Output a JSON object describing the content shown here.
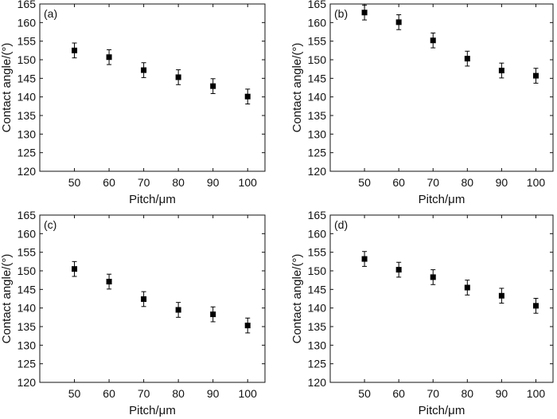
{
  "chart_data": [
    {
      "type": "scatter",
      "panel_label": "(a)",
      "xlabel": "Pitch/μm",
      "ylabel": "Contact angle/(°)",
      "x": [
        50,
        60,
        70,
        80,
        90,
        100
      ],
      "y": [
        152.5,
        150.7,
        147.2,
        145.3,
        142.9,
        140.1
      ],
      "yerr": [
        2.0,
        2.0,
        2.0,
        2.0,
        2.0,
        2.0
      ],
      "xlim": [
        40,
        105
      ],
      "ylim": [
        120,
        165
      ],
      "xticks": [
        50,
        60,
        70,
        80,
        90,
        100
      ],
      "yticks": [
        120,
        125,
        130,
        135,
        140,
        145,
        150,
        155,
        160,
        165
      ],
      "grid": false
    },
    {
      "type": "scatter",
      "panel_label": "(b)",
      "xlabel": "Pitch/μm",
      "ylabel": "Contact angle/(°)",
      "x": [
        50,
        60,
        70,
        80,
        90,
        100
      ],
      "y": [
        162.7,
        160.1,
        155.2,
        150.3,
        147.1,
        145.7
      ],
      "yerr": [
        2.0,
        2.0,
        2.0,
        2.0,
        2.0,
        2.0
      ],
      "xlim": [
        40,
        105
      ],
      "ylim": [
        120,
        165
      ],
      "xticks": [
        50,
        60,
        70,
        80,
        90,
        100
      ],
      "yticks": [
        120,
        125,
        130,
        135,
        140,
        145,
        150,
        155,
        160,
        165
      ],
      "grid": false
    },
    {
      "type": "scatter",
      "panel_label": "(c)",
      "xlabel": "Pitch/μm",
      "ylabel": "Contact angle/(°)",
      "x": [
        50,
        60,
        70,
        80,
        90,
        100
      ],
      "y": [
        150.5,
        147.1,
        142.4,
        139.5,
        138.3,
        135.3
      ],
      "yerr": [
        2.0,
        2.0,
        2.0,
        2.0,
        2.0,
        2.0
      ],
      "xlim": [
        40,
        105
      ],
      "ylim": [
        120,
        165
      ],
      "xticks": [
        50,
        60,
        70,
        80,
        90,
        100
      ],
      "yticks": [
        120,
        125,
        130,
        135,
        140,
        145,
        150,
        155,
        160,
        165
      ],
      "grid": false
    },
    {
      "type": "scatter",
      "panel_label": "(d)",
      "xlabel": "Pitch/μm",
      "ylabel": "Contact angle/(°)",
      "x": [
        50,
        60,
        70,
        80,
        90,
        100
      ],
      "y": [
        153.2,
        150.3,
        148.3,
        145.5,
        143.3,
        140.6
      ],
      "yerr": [
        2.0,
        2.0,
        2.0,
        2.0,
        2.0,
        2.0
      ],
      "xlim": [
        40,
        105
      ],
      "ylim": [
        120,
        165
      ],
      "xticks": [
        50,
        60,
        70,
        80,
        90,
        100
      ],
      "yticks": [
        120,
        125,
        130,
        135,
        140,
        145,
        150,
        155,
        160,
        165
      ],
      "grid": false
    }
  ],
  "colors": {
    "axis": "#111111",
    "marker": "#000000",
    "background": "#ffffff"
  }
}
